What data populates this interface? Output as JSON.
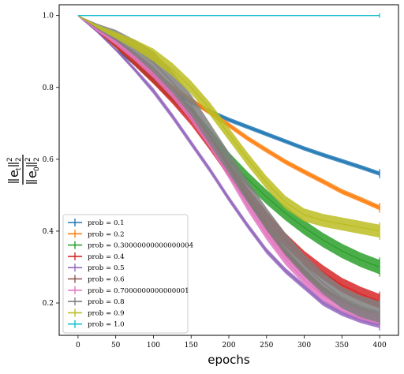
{
  "chart_data": {
    "type": "line",
    "title": "",
    "xlabel": "epochs",
    "ylabel": "||e_t||_2^2 / ||e_0||_2^2",
    "ylabel_parts": {
      "num_base": "e",
      "num_sub": "t",
      "den_base": "e",
      "den_sub": "0",
      "sup": "2",
      "sub2": "2"
    },
    "xlim": [
      -25,
      425
    ],
    "ylim": [
      0.11,
      1.03
    ],
    "xticks": [
      0,
      50,
      100,
      150,
      200,
      250,
      300,
      350,
      400
    ],
    "xtick_labels": [
      "0",
      "50",
      "100",
      "150",
      "200",
      "250",
      "300",
      "350",
      "400"
    ],
    "yticks": [
      0.2,
      0.4,
      0.6,
      0.8,
      1.0
    ],
    "ytick_labels": [
      "0.2",
      "0.4",
      "0.6",
      "0.8",
      "1.0"
    ],
    "grid": false,
    "legend_position": "lower-left",
    "x": [
      0,
      25,
      50,
      75,
      100,
      125,
      150,
      175,
      200,
      225,
      250,
      275,
      300,
      325,
      350,
      375,
      400
    ],
    "series": [
      {
        "name": "prob = 0.1",
        "color": "#1f77b4",
        "band": 0.006,
        "values": [
          1.0,
          0.955,
          0.905,
          0.865,
          0.825,
          0.79,
          0.76,
          0.733,
          0.71,
          0.69,
          0.67,
          0.65,
          0.63,
          0.612,
          0.595,
          0.578,
          0.56
        ]
      },
      {
        "name": "prob = 0.2",
        "color": "#ff7f0e",
        "band": 0.007,
        "values": [
          1.0,
          0.96,
          0.92,
          0.88,
          0.84,
          0.8,
          0.765,
          0.73,
          0.695,
          0.658,
          0.625,
          0.593,
          0.565,
          0.538,
          0.51,
          0.488,
          0.465
        ]
      },
      {
        "name": "prob = 0.30000000000000004",
        "color": "#2ca02c",
        "band": 0.02,
        "values": [
          1.0,
          0.96,
          0.92,
          0.875,
          0.83,
          0.78,
          0.725,
          0.665,
          0.6,
          0.545,
          0.495,
          0.45,
          0.41,
          0.375,
          0.345,
          0.32,
          0.3
        ]
      },
      {
        "name": "prob = 0.4",
        "color": "#d62728",
        "band": 0.02,
        "values": [
          1.0,
          0.96,
          0.92,
          0.875,
          0.83,
          0.775,
          0.715,
          0.645,
          0.57,
          0.5,
          0.435,
          0.375,
          0.325,
          0.285,
          0.25,
          0.225,
          0.205
        ]
      },
      {
        "name": "prob = 0.5",
        "color": "#9467bd",
        "band": 0.008,
        "values": [
          1.0,
          0.955,
          0.905,
          0.85,
          0.79,
          0.72,
          0.645,
          0.57,
          0.49,
          0.415,
          0.345,
          0.29,
          0.245,
          0.2,
          0.172,
          0.152,
          0.138
        ]
      },
      {
        "name": "prob = 0.6",
        "color": "#8c564b",
        "band": 0.012,
        "values": [
          1.0,
          0.96,
          0.93,
          0.89,
          0.845,
          0.79,
          0.73,
          0.655,
          0.575,
          0.49,
          0.41,
          0.34,
          0.285,
          0.235,
          0.2,
          0.175,
          0.16
        ]
      },
      {
        "name": "prob = 0.7000000000000001",
        "color": "#e377c2",
        "band": 0.014,
        "values": [
          1.0,
          0.96,
          0.925,
          0.885,
          0.84,
          0.785,
          0.72,
          0.645,
          0.56,
          0.47,
          0.39,
          0.32,
          0.265,
          0.22,
          0.19,
          0.168,
          0.155
        ]
      },
      {
        "name": "prob = 0.8",
        "color": "#7f7f7f",
        "band": 0.03,
        "values": [
          1.0,
          0.97,
          0.945,
          0.91,
          0.87,
          0.815,
          0.75,
          0.67,
          0.59,
          0.51,
          0.435,
          0.365,
          0.305,
          0.255,
          0.215,
          0.19,
          0.175
        ]
      },
      {
        "name": "prob = 0.9",
        "color": "#bcbd22",
        "band": 0.018,
        "values": [
          1.0,
          0.97,
          0.945,
          0.92,
          0.89,
          0.85,
          0.8,
          0.74,
          0.67,
          0.6,
          0.535,
          0.48,
          0.445,
          0.43,
          0.42,
          0.41,
          0.4
        ]
      },
      {
        "name": "prob = 1.0",
        "color": "#17becf",
        "band": 0.0,
        "values": [
          1.0,
          1.0,
          1.0,
          1.0,
          1.0,
          1.0,
          1.0,
          1.0,
          1.0,
          1.0,
          1.0,
          1.0,
          1.0,
          1.0,
          1.0,
          1.0,
          1.0
        ]
      }
    ]
  }
}
